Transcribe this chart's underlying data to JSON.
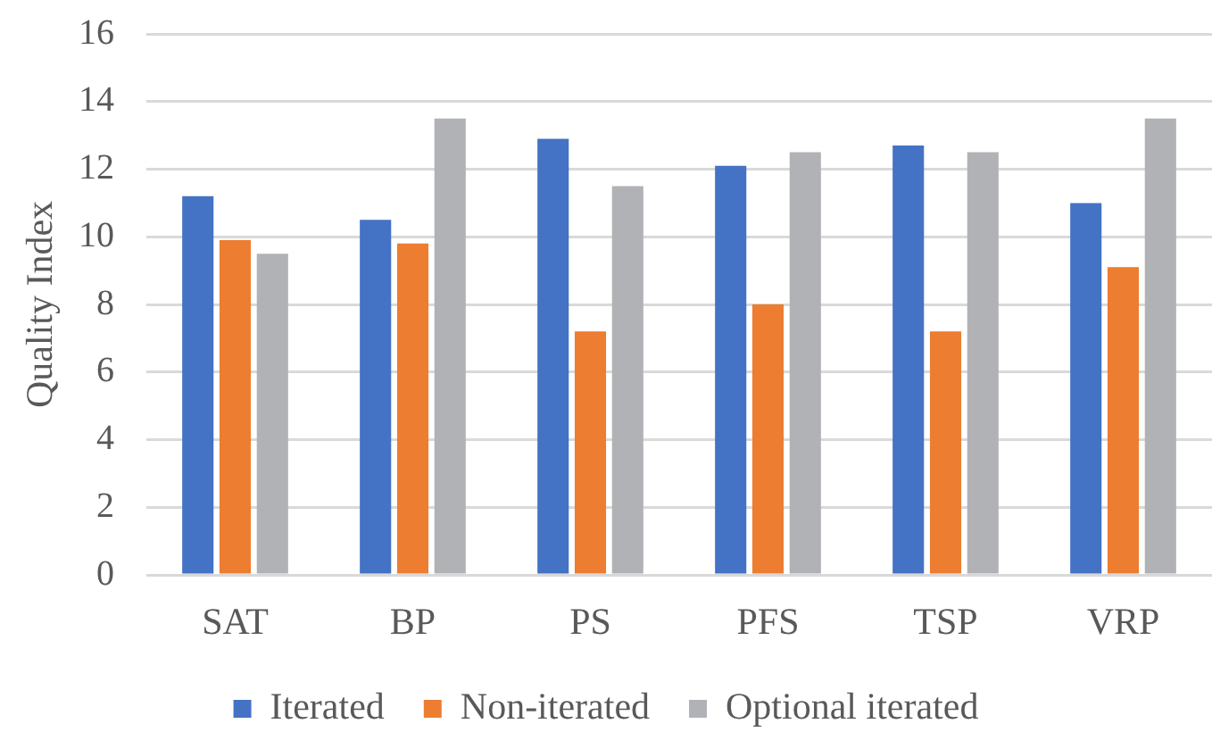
{
  "chart_data": {
    "type": "bar",
    "ylabel": "Quality Index",
    "categories": [
      "SAT",
      "BP",
      "PS",
      "PFS",
      "TSP",
      "VRP"
    ],
    "series": [
      {
        "name": "Iterated",
        "color": "#4472c4",
        "values": [
          11.2,
          10.5,
          12.9,
          12.1,
          12.7,
          11.0
        ]
      },
      {
        "name": "Non-iterated",
        "color": "#ed7d31",
        "values": [
          9.9,
          9.8,
          7.2,
          8.0,
          7.2,
          9.1
        ]
      },
      {
        "name": "Optional iterated",
        "color": "#b1b2b5",
        "values": [
          9.5,
          13.5,
          11.5,
          12.5,
          12.5,
          13.5
        ]
      }
    ],
    "ylim": [
      0,
      16
    ],
    "yticks": [
      0,
      2,
      4,
      6,
      8,
      10,
      12,
      14,
      16
    ],
    "grid": "y",
    "legend": "bottom"
  }
}
